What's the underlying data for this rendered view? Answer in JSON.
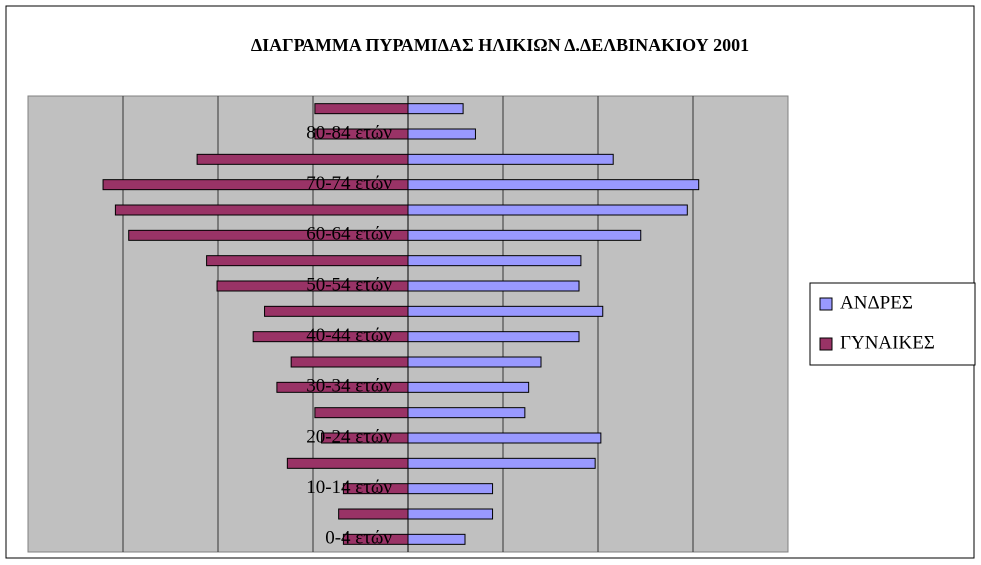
{
  "chart_data": {
    "type": "pyramid",
    "title": "ΔΙΑΓΡΑΜΜΑ ΠΥΡΑΜΙΔΑΣ ΗΛΙΚΙΩΝ Δ.ΔΕΛΒΙΝΑΚΙΟΥ 2001",
    "categories": [
      "0-4 ετών",
      null,
      "10-14 ετών",
      null,
      "20-24 ετών",
      null,
      "30-34 ετών",
      null,
      "40-44 ετών",
      null,
      "50-54 ετών",
      null,
      "60-64 ετών",
      null,
      "70-74 ετών",
      null,
      "80-84 ετών",
      null
    ],
    "series": [
      {
        "name": "ΑΝΔΡΕΣ",
        "color": "#9999ff",
        "values": [
          60,
          89,
          89,
          197,
          203,
          123,
          127,
          140,
          180,
          205,
          180,
          182,
          245,
          294,
          306,
          216,
          71,
          58
        ]
      },
      {
        "name": "ΓΥΝΑΙΚΕΣ",
        "color": "#993366",
        "values": [
          -68,
          -73,
          -68,
          -127,
          -91,
          -98,
          -138,
          -123,
          -163,
          -151,
          -201,
          -212,
          -294,
          -308,
          -321,
          -222,
          -98,
          -98
        ]
      }
    ],
    "xlim": [
      -400,
      400
    ],
    "xticks": [
      -300,
      -200,
      -100,
      0,
      100,
      200,
      300
    ],
    "grid": true,
    "legend": "right",
    "plot_background": "#c0c0c0"
  }
}
